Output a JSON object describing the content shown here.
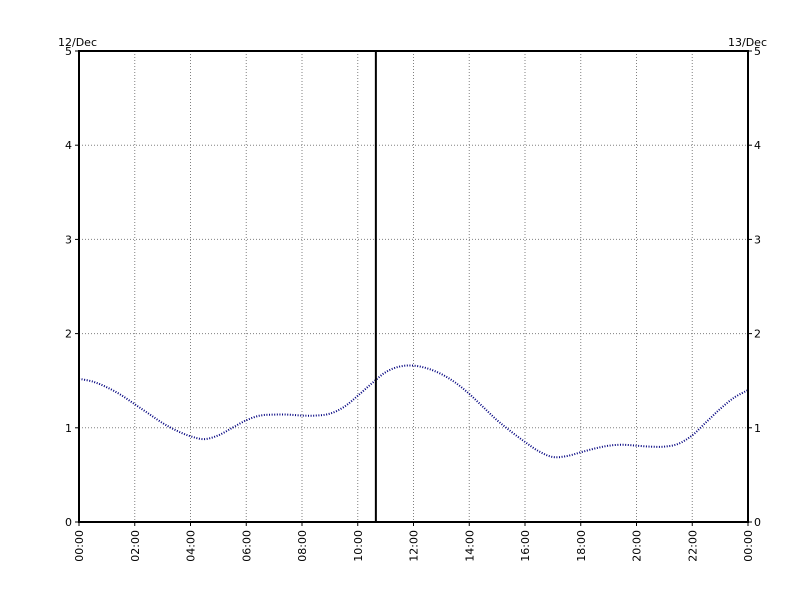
{
  "chart_data": {
    "type": "line",
    "title": "",
    "xlabel": "",
    "ylabel": "",
    "date_left": "12/Dec",
    "date_right": "13/Dec",
    "xlim": [
      0,
      24
    ],
    "ylim": [
      0,
      5
    ],
    "grid": true,
    "x_tick_labels": [
      "00:00",
      "02:00",
      "04:00",
      "06:00",
      "08:00",
      "10:00",
      "12:00",
      "14:00",
      "16:00",
      "18:00",
      "20:00",
      "22:00",
      "00:00"
    ],
    "y_tick_labels": [
      "0",
      "1",
      "2",
      "3",
      "4",
      "5"
    ],
    "current_time_marker": 10.65,
    "colors": {
      "series": "#00007f",
      "grid": "#808080",
      "marker": "#000000"
    },
    "series": [
      {
        "x": [
          0,
          0.5,
          1,
          1.5,
          2,
          2.5,
          3,
          3.5,
          4,
          4.5,
          5,
          5.5,
          6,
          6.5,
          7,
          7.5,
          8,
          8.5,
          9,
          9.5,
          10,
          10.5,
          11,
          11.5,
          12,
          12.5,
          13,
          13.5,
          14,
          14.5,
          15,
          15.5,
          16,
          16.5,
          17,
          17.5,
          18,
          18.5,
          19,
          19.5,
          20,
          20.5,
          21,
          21.5,
          22,
          22.5,
          23,
          23.5,
          24
        ],
        "values": [
          1.52,
          1.49,
          1.43,
          1.35,
          1.25,
          1.15,
          1.05,
          0.97,
          0.91,
          0.88,
          0.92,
          1.0,
          1.08,
          1.13,
          1.14,
          1.14,
          1.13,
          1.13,
          1.15,
          1.22,
          1.34,
          1.47,
          1.59,
          1.65,
          1.66,
          1.63,
          1.57,
          1.48,
          1.36,
          1.22,
          1.08,
          0.96,
          0.85,
          0.75,
          0.69,
          0.7,
          0.74,
          0.78,
          0.81,
          0.82,
          0.81,
          0.8,
          0.8,
          0.83,
          0.92,
          1.06,
          1.2,
          1.32,
          1.4
        ]
      }
    ]
  }
}
